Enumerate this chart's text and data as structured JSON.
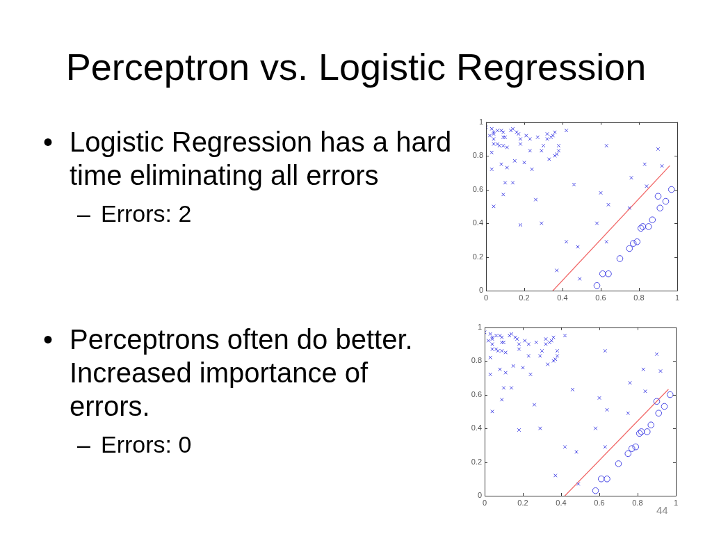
{
  "chart_data": [
    {
      "type": "scatter",
      "title": "Perceptron vs. Logistic Regression",
      "annotations": [
        "•",
        "Logistic Regression has a hard time eliminating all errors",
        "–",
        "Errors: 2"
      ],
      "xlim": [
        0,
        1
      ],
      "ylim": [
        0,
        1
      ],
      "xticks": [
        0,
        0.2,
        0.4,
        0.6,
        0.8,
        1
      ],
      "yticks": [
        0,
        0.2,
        0.4,
        0.6,
        0.8,
        1
      ],
      "series": [
        {
          "marker": "cross",
          "color": "#4646e6",
          "x": [
            0,
            0.03,
            0.02,
            0.04,
            0.04,
            0.06,
            0.08,
            0.09,
            0.09,
            0.1,
            0.04,
            0.04,
            0.06,
            0.07,
            0.09,
            0.11,
            0.03,
            0.13,
            0.14,
            0.16,
            0.17,
            0.18,
            0.18,
            0.21,
            0.23,
            0.27,
            0.23,
            0.3,
            0.29,
            0.32,
            0.32,
            0.34,
            0.35,
            0.36,
            0.38,
            0.38,
            0.37,
            0.36,
            0.33,
            0.42,
            0.15,
            0.2,
            0.08,
            0.11,
            0.03,
            0.24,
            0.1,
            0.14,
            0.09,
            0.26,
            0.04,
            0.18,
            0.29,
            0.46,
            0.42,
            0.48,
            0.37,
            0.63,
            0.6,
            0.64,
            0.58,
            0.63,
            0.49,
            0.76,
            0.75,
            0.83,
            0.84,
            0.9,
            0.92
          ],
          "values": [
            0.97,
            0.96,
            0.92,
            0.93,
            0.94,
            0.95,
            0.95,
            0.94,
            0.91,
            0.91,
            0.9,
            0.87,
            0.87,
            0.86,
            0.86,
            0.85,
            0.82,
            0.95,
            0.96,
            0.94,
            0.93,
            0.9,
            0.87,
            0.92,
            0.9,
            0.91,
            0.83,
            0.86,
            0.83,
            0.93,
            0.9,
            0.91,
            0.92,
            0.94,
            0.86,
            0.83,
            0.81,
            0.8,
            0.78,
            0.95,
            0.77,
            0.76,
            0.75,
            0.73,
            0.72,
            0.72,
            0.64,
            0.64,
            0.57,
            0.54,
            0.5,
            0.39,
            0.4,
            0.63,
            0.29,
            0.26,
            0.12,
            0.86,
            0.58,
            0.51,
            0.4,
            0.29,
            0.07,
            0.67,
            0.49,
            0.75,
            0.62,
            0.84,
            0.74
          ]
        },
        {
          "marker": "circle",
          "color": "#4646e6",
          "x": [
            0.58,
            0.61,
            0.64,
            0.7,
            0.75,
            0.77,
            0.79,
            0.81,
            0.82,
            0.85,
            0.87,
            0.91,
            0.9,
            0.94,
            0.97
          ],
          "values": [
            0.03,
            0.1,
            0.1,
            0.19,
            0.25,
            0.28,
            0.29,
            0.37,
            0.38,
            0.38,
            0.42,
            0.49,
            0.56,
            0.53,
            0.6
          ]
        },
        {
          "type": "line",
          "marker": "none",
          "color": "#f26b6b",
          "x": [
            0.35,
            0.96
          ],
          "values": [
            0,
            0.74
          ]
        }
      ]
    },
    {
      "type": "scatter",
      "annotations": [
        "•",
        "Perceptrons often do better. Increased importance of errors.",
        "–",
        "Errors: 0",
        "44"
      ],
      "xlim": [
        0,
        1
      ],
      "ylim": [
        0,
        1
      ],
      "xticks": [
        0,
        0.2,
        0.4,
        0.6,
        0.8,
        1
      ],
      "yticks": [
        0,
        0.2,
        0.4,
        0.6,
        0.8,
        1
      ],
      "series": [
        {
          "marker": "cross",
          "color": "#4646e6",
          "x": [
            0,
            0.03,
            0.02,
            0.04,
            0.04,
            0.06,
            0.08,
            0.09,
            0.09,
            0.1,
            0.04,
            0.04,
            0.06,
            0.07,
            0.09,
            0.11,
            0.03,
            0.13,
            0.14,
            0.16,
            0.17,
            0.18,
            0.18,
            0.21,
            0.23,
            0.27,
            0.23,
            0.3,
            0.29,
            0.32,
            0.32,
            0.34,
            0.35,
            0.36,
            0.38,
            0.38,
            0.37,
            0.36,
            0.33,
            0.42,
            0.15,
            0.2,
            0.08,
            0.11,
            0.03,
            0.24,
            0.1,
            0.14,
            0.09,
            0.26,
            0.04,
            0.18,
            0.29,
            0.46,
            0.42,
            0.48,
            0.37,
            0.63,
            0.6,
            0.64,
            0.58,
            0.63,
            0.49,
            0.76,
            0.75,
            0.83,
            0.84,
            0.9,
            0.92
          ],
          "values": [
            0.97,
            0.96,
            0.92,
            0.93,
            0.94,
            0.95,
            0.95,
            0.94,
            0.91,
            0.91,
            0.9,
            0.87,
            0.87,
            0.86,
            0.86,
            0.85,
            0.82,
            0.95,
            0.96,
            0.94,
            0.93,
            0.9,
            0.87,
            0.92,
            0.9,
            0.91,
            0.83,
            0.86,
            0.83,
            0.93,
            0.9,
            0.91,
            0.92,
            0.94,
            0.86,
            0.83,
            0.81,
            0.8,
            0.78,
            0.95,
            0.77,
            0.76,
            0.75,
            0.73,
            0.72,
            0.72,
            0.64,
            0.64,
            0.57,
            0.54,
            0.5,
            0.39,
            0.4,
            0.63,
            0.29,
            0.26,
            0.12,
            0.86,
            0.58,
            0.51,
            0.4,
            0.29,
            0.07,
            0.67,
            0.49,
            0.75,
            0.62,
            0.84,
            0.74
          ]
        },
        {
          "marker": "circle",
          "color": "#4646e6",
          "x": [
            0.58,
            0.61,
            0.64,
            0.7,
            0.75,
            0.77,
            0.79,
            0.81,
            0.82,
            0.85,
            0.87,
            0.91,
            0.9,
            0.94,
            0.97
          ],
          "values": [
            0.03,
            0.1,
            0.1,
            0.19,
            0.25,
            0.28,
            0.29,
            0.37,
            0.38,
            0.38,
            0.42,
            0.49,
            0.56,
            0.53,
            0.6
          ]
        },
        {
          "type": "line",
          "marker": "none",
          "color": "#f26b6b",
          "x": [
            0.42,
            0.96
          ],
          "values": [
            0,
            0.63
          ]
        }
      ]
    }
  ]
}
